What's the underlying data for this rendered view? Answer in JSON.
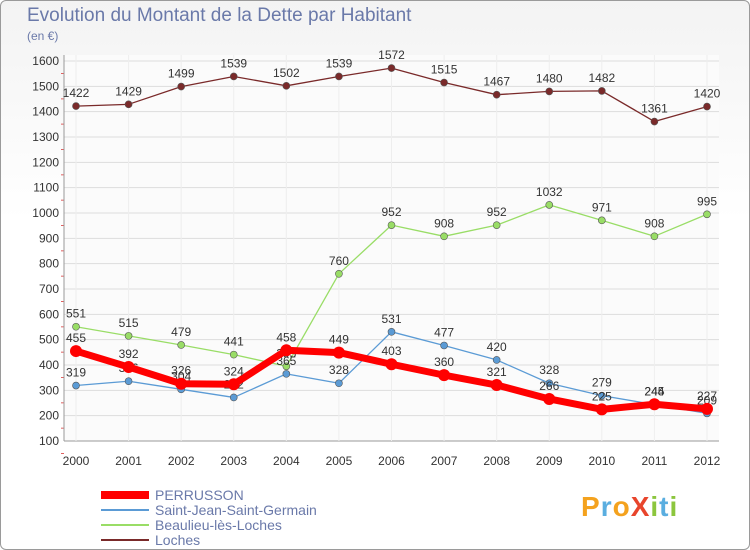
{
  "chart_data": {
    "type": "line",
    "title": "Evolution du Montant de la Dette par Habitant",
    "subtitle": "(en €)",
    "x": [
      "2000",
      "2001",
      "2002",
      "2003",
      "2004",
      "2005",
      "2006",
      "2007",
      "2008",
      "2009",
      "2010",
      "2011",
      "2012"
    ],
    "ylim": [
      100,
      1600
    ],
    "yticks": [
      100,
      200,
      300,
      400,
      500,
      600,
      700,
      800,
      900,
      1000,
      1100,
      1200,
      1300,
      1400,
      1500,
      1600
    ],
    "grid": "horizontal",
    "legend_position": "bottom-left",
    "series": [
      {
        "name": "PERRUSSON",
        "color": "#ff0000",
        "values": [
          455,
          392,
          326,
          324,
          458,
          449,
          403,
          360,
          321,
          266,
          225,
          245,
          227
        ]
      },
      {
        "name": "Saint-Jean-Saint-Germain",
        "color": "#5b9bd5",
        "values": [
          319,
          336,
          304,
          272,
          365,
          328,
          531,
          477,
          420,
          328,
          279,
          244,
          209
        ]
      },
      {
        "name": "Beaulieu-lès-Loches",
        "color": "#99dd66",
        "values": [
          551,
          515,
          479,
          441,
          395,
          760,
          952,
          908,
          952,
          1032,
          971,
          908,
          995
        ]
      },
      {
        "name": "Loches",
        "color": "#7a2a2a",
        "values": [
          1422,
          1429,
          1499,
          1539,
          1502,
          1539,
          1572,
          1515,
          1467,
          1480,
          1482,
          1361,
          1420
        ]
      }
    ]
  },
  "logo": {
    "text": "ProXiti",
    "letters": [
      "P",
      "r",
      "o",
      "X",
      "i",
      "t",
      "i"
    ],
    "colors": [
      "#f4a21e",
      "#5aaee0",
      "#f4a21e",
      "#e8452c",
      "#8cc63e",
      "#5aaee0",
      "#8cc63e"
    ]
  }
}
